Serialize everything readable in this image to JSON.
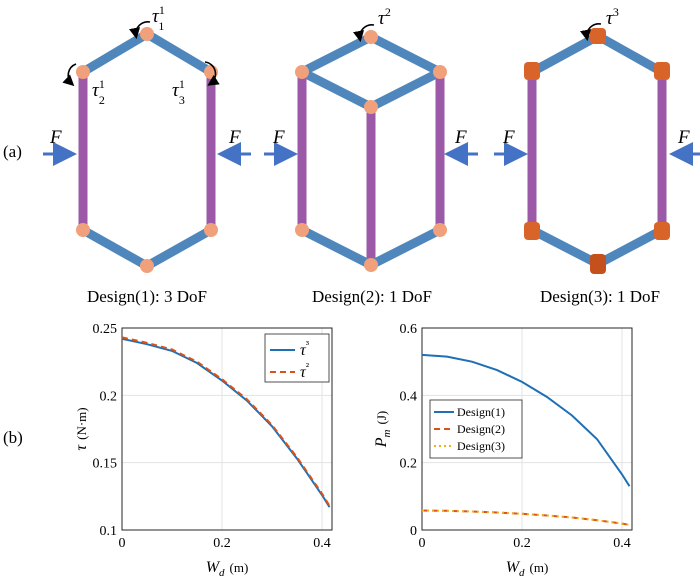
{
  "panel_a": {
    "label": "(a)",
    "designs": [
      {
        "caption": "Design(1): 3 DoF",
        "force_label": "F",
        "torques": [
          {
            "base": "τ",
            "sup": "1",
            "sub": "1"
          },
          {
            "base": "τ",
            "sup": "1",
            "sub": "2"
          },
          {
            "base": "τ",
            "sup": "1",
            "sub": "3"
          }
        ]
      },
      {
        "caption": "Design(2): 1 DoF",
        "force_label": "F",
        "torques": [
          {
            "base": "τ",
            "sup": "2",
            "sub": ""
          }
        ]
      },
      {
        "caption": "Design(3): 1 DoF",
        "force_label": "F",
        "torques": [
          {
            "base": "τ",
            "sup": "3",
            "sub": ""
          }
        ]
      }
    ],
    "colors": {
      "blue_link": "#4f87bd",
      "purple_link": "#9b59a8",
      "joint": "#f0a07a",
      "joint_dark": "#d9642a",
      "arrow": "#4472c4"
    }
  },
  "panel_b": {
    "label": "(b)"
  },
  "chart_data": [
    {
      "type": "line",
      "xlabel": "W_d (m)",
      "ylabel": "τ (N·m)",
      "xlim": [
        0,
        0.42
      ],
      "ylim": [
        0.1,
        0.25
      ],
      "xticks": [
        "0",
        "0.2",
        "0.4"
      ],
      "yticks": [
        "0.1",
        "0.15",
        "0.2",
        "0.25"
      ],
      "grid": true,
      "legend": "top-right",
      "x": [
        0,
        0.05,
        0.1,
        0.15,
        0.2,
        0.25,
        0.3,
        0.35,
        0.4,
        0.415
      ],
      "series": [
        {
          "name": "τ³",
          "color": "#1f6fb5",
          "dash": "solid",
          "values": [
            0.242,
            0.238,
            0.233,
            0.224,
            0.211,
            0.196,
            0.177,
            0.153,
            0.126,
            0.117
          ]
        },
        {
          "name": "τ²",
          "color": "#d95319",
          "dash": "dashed",
          "values": [
            0.243,
            0.239,
            0.234,
            0.225,
            0.212,
            0.197,
            0.178,
            0.154,
            0.127,
            0.118
          ]
        }
      ]
    },
    {
      "type": "line",
      "xlabel": "W_d (m)",
      "ylabel": "P_m (J)",
      "xlim": [
        0,
        0.42
      ],
      "ylim": [
        0,
        0.6
      ],
      "xticks": [
        "0",
        "0.2",
        "0.4"
      ],
      "yticks": [
        "0",
        "0.2",
        "0.4",
        "0.6"
      ],
      "grid": true,
      "legend": "center-right",
      "x": [
        0,
        0.05,
        0.1,
        0.15,
        0.2,
        0.25,
        0.3,
        0.35,
        0.4,
        0.415
      ],
      "series": [
        {
          "name": "Design(1)",
          "color": "#1f6fb5",
          "dash": "solid",
          "values": [
            0.52,
            0.515,
            0.5,
            0.475,
            0.44,
            0.395,
            0.34,
            0.27,
            0.165,
            0.13
          ]
        },
        {
          "name": "Design(2)",
          "color": "#d95319",
          "dash": "dashed",
          "values": [
            0.058,
            0.057,
            0.055,
            0.052,
            0.048,
            0.043,
            0.037,
            0.029,
            0.019,
            0.015
          ]
        },
        {
          "name": "Design(3)",
          "color": "#edb120",
          "dash": "dotted",
          "values": [
            0.058,
            0.057,
            0.055,
            0.052,
            0.048,
            0.043,
            0.037,
            0.029,
            0.019,
            0.015
          ]
        }
      ]
    }
  ]
}
